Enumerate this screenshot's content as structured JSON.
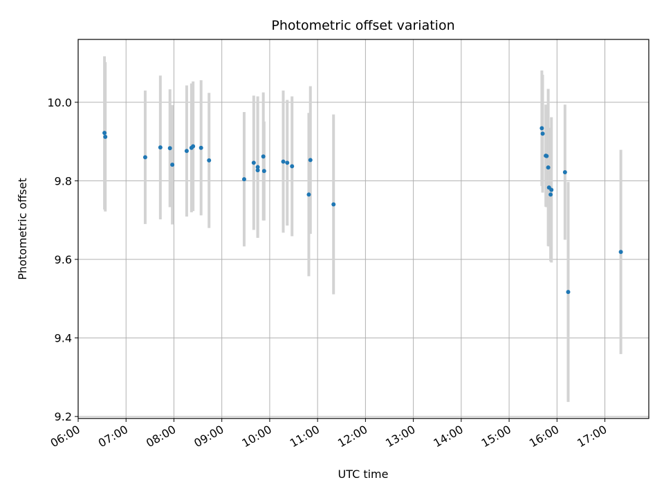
{
  "chart_data": {
    "type": "scatter",
    "title": "Photometric offset variation",
    "xlabel": "UTC time",
    "ylabel": "Photometric offset",
    "x_axis_type": "time",
    "xlim": [
      "06:00",
      "17:55"
    ],
    "ylim": [
      9.195,
      10.16
    ],
    "x_ticks": [
      "06:00",
      "07:00",
      "08:00",
      "09:00",
      "10:00",
      "11:00",
      "12:00",
      "13:00",
      "14:00",
      "15:00",
      "16:00",
      "17:00"
    ],
    "y_ticks": [
      "9.2",
      "9.4",
      "9.6",
      "9.8",
      "10.0"
    ],
    "y_tick_values": [
      9.2,
      9.4,
      9.6,
      9.8,
      10.0
    ],
    "grid": true,
    "legend": "none",
    "colors": {
      "marker": "#1f77b4",
      "errorbar": "#d3d3d3",
      "grid": "#b0b0b0",
      "axes": "#000000"
    },
    "points": [
      {
        "time": "06:33",
        "y": 9.922,
        "err": 0.195
      },
      {
        "time": "06:34",
        "y": 9.912,
        "err": 0.19
      },
      {
        "time": "07:24",
        "y": 9.86,
        "err": 0.17
      },
      {
        "time": "07:43",
        "y": 9.885,
        "err": 0.183
      },
      {
        "time": "07:55",
        "y": 9.883,
        "err": 0.15
      },
      {
        "time": "07:58",
        "y": 9.841,
        "err": 0.152
      },
      {
        "time": "08:16",
        "y": 9.876,
        "err": 0.167
      },
      {
        "time": "08:22",
        "y": 9.884,
        "err": 0.164
      },
      {
        "time": "08:24",
        "y": 9.888,
        "err": 0.165
      },
      {
        "time": "08:34",
        "y": 9.884,
        "err": 0.172
      },
      {
        "time": "08:44",
        "y": 9.852,
        "err": 0.172
      },
      {
        "time": "09:28",
        "y": 9.804,
        "err": 0.171
      },
      {
        "time": "09:40",
        "y": 9.846,
        "err": 0.171
      },
      {
        "time": "09:45",
        "y": 9.835,
        "err": 0.18
      },
      {
        "time": "09:45",
        "y": 9.827,
        "err": 0.172
      },
      {
        "time": "09:52",
        "y": 9.862,
        "err": 0.163
      },
      {
        "time": "09:53",
        "y": 9.825,
        "err": 0.126
      },
      {
        "time": "10:17",
        "y": 9.849,
        "err": 0.181
      },
      {
        "time": "10:22",
        "y": 9.846,
        "err": 0.16
      },
      {
        "time": "10:28",
        "y": 9.837,
        "err": 0.178
      },
      {
        "time": "10:49",
        "y": 9.765,
        "err": 0.208
      },
      {
        "time": "10:51",
        "y": 9.853,
        "err": 0.188
      },
      {
        "time": "11:20",
        "y": 9.74,
        "err": 0.229
      },
      {
        "time": "15:41",
        "y": 9.934,
        "err": 0.147
      },
      {
        "time": "15:42",
        "y": 9.92,
        "err": 0.15
      },
      {
        "time": "15:46",
        "y": 9.864,
        "err": 0.13
      },
      {
        "time": "15:47",
        "y": 9.863,
        "err": 0.13
      },
      {
        "time": "15:49",
        "y": 9.834,
        "err": 0.2
      },
      {
        "time": "15:50",
        "y": 9.783,
        "err": 0.15
      },
      {
        "time": "15:52",
        "y": 9.765,
        "err": 0.17
      },
      {
        "time": "15:53",
        "y": 9.777,
        "err": 0.185
      },
      {
        "time": "16:10",
        "y": 9.822,
        "err": 0.172
      },
      {
        "time": "16:14",
        "y": 9.517,
        "err": 0.28
      },
      {
        "time": "17:20",
        "y": 9.619,
        "err": 0.26
      }
    ]
  }
}
